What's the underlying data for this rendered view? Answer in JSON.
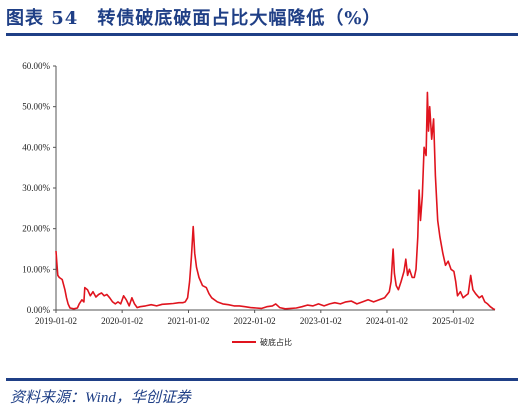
{
  "header": {
    "title": "图表 54　转债破底破面占比大幅降低（%）"
  },
  "footer": {
    "source": "资料来源：Wind，华创证券"
  },
  "colors": {
    "accent": "#1f3f86",
    "series": "#e0141e",
    "axis": "#555555"
  },
  "chart_data": {
    "type": "line",
    "title": "",
    "xlabel": "",
    "ylabel": "",
    "ylim": [
      0,
      60
    ],
    "y_ticks": [
      "0.00%",
      "10.00%",
      "20.00%",
      "30.00%",
      "40.00%",
      "50.00%",
      "60.00%"
    ],
    "y_tick_values": [
      0,
      10,
      20,
      30,
      40,
      50,
      60
    ],
    "x_ticks": [
      "2019-01-02",
      "2020-01-02",
      "2021-01-02",
      "2022-01-02",
      "2023-01-02",
      "2024-01-02",
      "2025-01-02"
    ],
    "xlim": [
      "2019-01-02",
      "2025-08-20"
    ],
    "grid": false,
    "legend_position": "bottom",
    "series": [
      {
        "name": "破底占比",
        "points": [
          [
            "2019-01-02",
            14.5
          ],
          [
            "2019-01-06",
            12.0
          ],
          [
            "2019-01-12",
            8.5
          ],
          [
            "2019-01-20",
            8.0
          ],
          [
            "2019-02-05",
            7.5
          ],
          [
            "2019-02-20",
            5.0
          ],
          [
            "2019-03-01",
            3.0
          ],
          [
            "2019-03-10",
            1.5
          ],
          [
            "2019-03-20",
            0.5
          ],
          [
            "2019-04-10",
            0.3
          ],
          [
            "2019-04-30",
            0.5
          ],
          [
            "2019-05-10",
            1.5
          ],
          [
            "2019-05-25",
            2.5
          ],
          [
            "2019-06-05",
            2.0
          ],
          [
            "2019-06-10",
            5.5
          ],
          [
            "2019-06-25",
            5.0
          ],
          [
            "2019-07-10",
            3.5
          ],
          [
            "2019-07-25",
            4.5
          ],
          [
            "2019-08-10",
            3.2
          ],
          [
            "2019-08-25",
            3.8
          ],
          [
            "2019-09-10",
            4.2
          ],
          [
            "2019-09-25",
            3.5
          ],
          [
            "2019-10-10",
            3.8
          ],
          [
            "2019-10-25",
            3.0
          ],
          [
            "2019-11-10",
            2.0
          ],
          [
            "2019-11-25",
            1.5
          ],
          [
            "2019-12-10",
            2.0
          ],
          [
            "2019-12-25",
            1.5
          ],
          [
            "2020-01-10",
            3.5
          ],
          [
            "2020-01-25",
            2.5
          ],
          [
            "2020-02-10",
            1.0
          ],
          [
            "2020-02-25",
            3.0
          ],
          [
            "2020-03-10",
            1.5
          ],
          [
            "2020-03-25",
            0.6
          ],
          [
            "2020-04-10",
            0.8
          ],
          [
            "2020-05-10",
            1.0
          ],
          [
            "2020-06-10",
            1.3
          ],
          [
            "2020-07-10",
            1.0
          ],
          [
            "2020-08-10",
            1.4
          ],
          [
            "2020-09-10",
            1.5
          ],
          [
            "2020-10-10",
            1.6
          ],
          [
            "2020-11-10",
            1.8
          ],
          [
            "2020-12-01",
            1.8
          ],
          [
            "2020-12-15",
            2.0
          ],
          [
            "2020-12-28",
            3.0
          ],
          [
            "2021-01-08",
            7.0
          ],
          [
            "2021-01-18",
            13.0
          ],
          [
            "2021-01-28",
            20.5
          ],
          [
            "2021-02-05",
            14.0
          ],
          [
            "2021-02-15",
            10.5
          ],
          [
            "2021-03-01",
            8.0
          ],
          [
            "2021-03-20",
            6.0
          ],
          [
            "2021-04-10",
            5.5
          ],
          [
            "2021-04-25",
            4.0
          ],
          [
            "2021-05-10",
            3.0
          ],
          [
            "2021-06-10",
            2.0
          ],
          [
            "2021-07-10",
            1.5
          ],
          [
            "2021-08-10",
            1.3
          ],
          [
            "2021-09-10",
            1.0
          ],
          [
            "2021-10-10",
            1.0
          ],
          [
            "2021-11-10",
            0.8
          ],
          [
            "2021-12-10",
            0.6
          ],
          [
            "2022-01-10",
            0.5
          ],
          [
            "2022-02-10",
            0.4
          ],
          [
            "2022-03-10",
            0.8
          ],
          [
            "2022-04-10",
            1.0
          ],
          [
            "2022-04-28",
            1.5
          ],
          [
            "2022-05-20",
            0.6
          ],
          [
            "2022-06-20",
            0.3
          ],
          [
            "2022-07-20",
            0.4
          ],
          [
            "2022-08-20",
            0.5
          ],
          [
            "2022-09-20",
            0.8
          ],
          [
            "2022-10-20",
            1.2
          ],
          [
            "2022-11-20",
            1.0
          ],
          [
            "2022-12-20",
            1.5
          ],
          [
            "2023-01-20",
            1.0
          ],
          [
            "2023-02-20",
            1.5
          ],
          [
            "2023-03-20",
            1.8
          ],
          [
            "2023-04-20",
            1.5
          ],
          [
            "2023-05-20",
            2.0
          ],
          [
            "2023-06-20",
            2.2
          ],
          [
            "2023-07-20",
            1.5
          ],
          [
            "2023-08-20",
            2.0
          ],
          [
            "2023-09-20",
            2.5
          ],
          [
            "2023-10-20",
            2.0
          ],
          [
            "2023-11-20",
            2.5
          ],
          [
            "2023-12-20",
            3.0
          ],
          [
            "2024-01-15",
            4.5
          ],
          [
            "2024-01-25",
            7.0
          ],
          [
            "2024-02-05",
            15.0
          ],
          [
            "2024-02-12",
            9.0
          ],
          [
            "2024-02-22",
            6.0
          ],
          [
            "2024-03-05",
            5.0
          ],
          [
            "2024-03-20",
            7.0
          ],
          [
            "2024-04-05",
            9.5
          ],
          [
            "2024-04-15",
            12.5
          ],
          [
            "2024-04-25",
            8.5
          ],
          [
            "2024-05-05",
            10.0
          ],
          [
            "2024-05-20",
            8.0
          ],
          [
            "2024-06-01",
            8.0
          ],
          [
            "2024-06-10",
            10.0
          ],
          [
            "2024-06-20",
            18.0
          ],
          [
            "2024-06-27",
            29.5
          ],
          [
            "2024-07-05",
            22.0
          ],
          [
            "2024-07-15",
            28.0
          ],
          [
            "2024-07-25",
            40.0
          ],
          [
            "2024-08-05",
            38.0
          ],
          [
            "2024-08-12",
            53.5
          ],
          [
            "2024-08-18",
            44.0
          ],
          [
            "2024-08-25",
            50.0
          ],
          [
            "2024-09-05",
            42.0
          ],
          [
            "2024-09-15",
            47.0
          ],
          [
            "2024-09-25",
            33.0
          ],
          [
            "2024-10-08",
            22.0
          ],
          [
            "2024-10-20",
            18.0
          ],
          [
            "2024-11-05",
            14.0
          ],
          [
            "2024-11-20",
            11.0
          ],
          [
            "2024-12-05",
            12.0
          ],
          [
            "2024-12-20",
            10.0
          ],
          [
            "2025-01-05",
            9.5
          ],
          [
            "2025-01-15",
            7.0
          ],
          [
            "2025-01-25",
            3.5
          ],
          [
            "2025-02-10",
            4.5
          ],
          [
            "2025-02-25",
            3.0
          ],
          [
            "2025-03-10",
            3.5
          ],
          [
            "2025-03-25",
            4.0
          ],
          [
            "2025-04-08",
            8.5
          ],
          [
            "2025-04-20",
            5.0
          ],
          [
            "2025-05-05",
            4.0
          ],
          [
            "2025-05-25",
            3.0
          ],
          [
            "2025-06-10",
            3.5
          ],
          [
            "2025-06-25",
            2.0
          ],
          [
            "2025-07-10",
            1.5
          ],
          [
            "2025-07-25",
            0.8
          ],
          [
            "2025-08-10",
            0.3
          ],
          [
            "2025-08-20",
            0.1
          ]
        ]
      }
    ]
  }
}
